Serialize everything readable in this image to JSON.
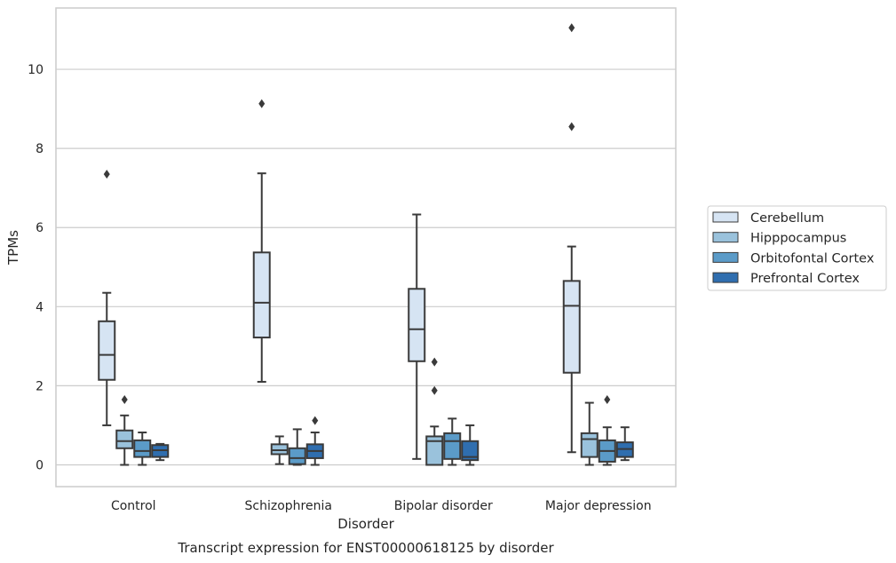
{
  "chart_data": {
    "type": "box",
    "title": "",
    "caption": "Transcript expression for ENST00000618125 by disorder",
    "xlabel": "Disorder",
    "ylabel": "TPMs",
    "ylim": [
      -0.55,
      11.55
    ],
    "yticks": [
      0,
      2,
      4,
      6,
      8,
      10
    ],
    "grid": true,
    "legend_position": "right",
    "categories": [
      "Control",
      "Schizophrenia",
      "Bipolar disorder",
      "Major depression"
    ],
    "series": [
      {
        "name": "Cerebellum",
        "color": "#d6e4f3",
        "boxes": [
          {
            "whislo": 1.0,
            "q1": 2.15,
            "med": 2.78,
            "q3": 3.63,
            "whishi": 4.35,
            "fliers": [
              7.35
            ]
          },
          {
            "whislo": 2.1,
            "q1": 3.22,
            "med": 4.1,
            "q3": 5.37,
            "whishi": 7.37,
            "fliers": [
              9.13
            ]
          },
          {
            "whislo": 0.15,
            "q1": 2.62,
            "med": 3.43,
            "q3": 4.45,
            "whishi": 6.33,
            "fliers": []
          },
          {
            "whislo": 0.32,
            "q1": 2.33,
            "med": 4.02,
            "q3": 4.65,
            "whishi": 5.52,
            "fliers": [
              8.55,
              11.05
            ]
          }
        ]
      },
      {
        "name": "Hipppocampus",
        "color": "#9ac2dc",
        "boxes": [
          {
            "whislo": 0.0,
            "q1": 0.42,
            "med": 0.6,
            "q3": 0.87,
            "whishi": 1.25,
            "fliers": [
              1.65
            ]
          },
          {
            "whislo": 0.02,
            "q1": 0.27,
            "med": 0.37,
            "q3": 0.52,
            "whishi": 0.72,
            "fliers": []
          },
          {
            "whislo": 0.0,
            "q1": 0.0,
            "med": 0.6,
            "q3": 0.72,
            "whishi": 0.97,
            "fliers": [
              1.88,
              2.6
            ]
          },
          {
            "whislo": 0.0,
            "q1": 0.2,
            "med": 0.65,
            "q3": 0.8,
            "whishi": 1.57,
            "fliers": []
          }
        ]
      },
      {
        "name": "Orbitofontal Cortex",
        "color": "#5b9bc8",
        "boxes": [
          {
            "whislo": 0.0,
            "q1": 0.2,
            "med": 0.35,
            "q3": 0.62,
            "whishi": 0.82,
            "fliers": []
          },
          {
            "whislo": 0.0,
            "q1": 0.02,
            "med": 0.17,
            "q3": 0.42,
            "whishi": 0.9,
            "fliers": []
          },
          {
            "whislo": 0.0,
            "q1": 0.15,
            "med": 0.6,
            "q3": 0.8,
            "whishi": 1.17,
            "fliers": []
          },
          {
            "whislo": 0.0,
            "q1": 0.08,
            "med": 0.35,
            "q3": 0.62,
            "whishi": 0.95,
            "fliers": [
              1.65
            ]
          }
        ]
      },
      {
        "name": "Prefrontal Cortex",
        "color": "#2f6eaf",
        "boxes": [
          {
            "whislo": 0.12,
            "q1": 0.2,
            "med": 0.37,
            "q3": 0.5,
            "whishi": 0.53,
            "fliers": []
          },
          {
            "whislo": 0.0,
            "q1": 0.17,
            "med": 0.35,
            "q3": 0.52,
            "whishi": 0.82,
            "fliers": [
              1.12
            ]
          },
          {
            "whislo": 0.0,
            "q1": 0.12,
            "med": 0.2,
            "q3": 0.6,
            "whishi": 1.0,
            "fliers": []
          },
          {
            "whislo": 0.12,
            "q1": 0.2,
            "med": 0.4,
            "q3": 0.57,
            "whishi": 0.95,
            "fliers": []
          }
        ]
      }
    ]
  },
  "colors": {
    "grid": "#cccccc",
    "frame": "#cccccc",
    "box_edge": "#3a3a3a"
  }
}
